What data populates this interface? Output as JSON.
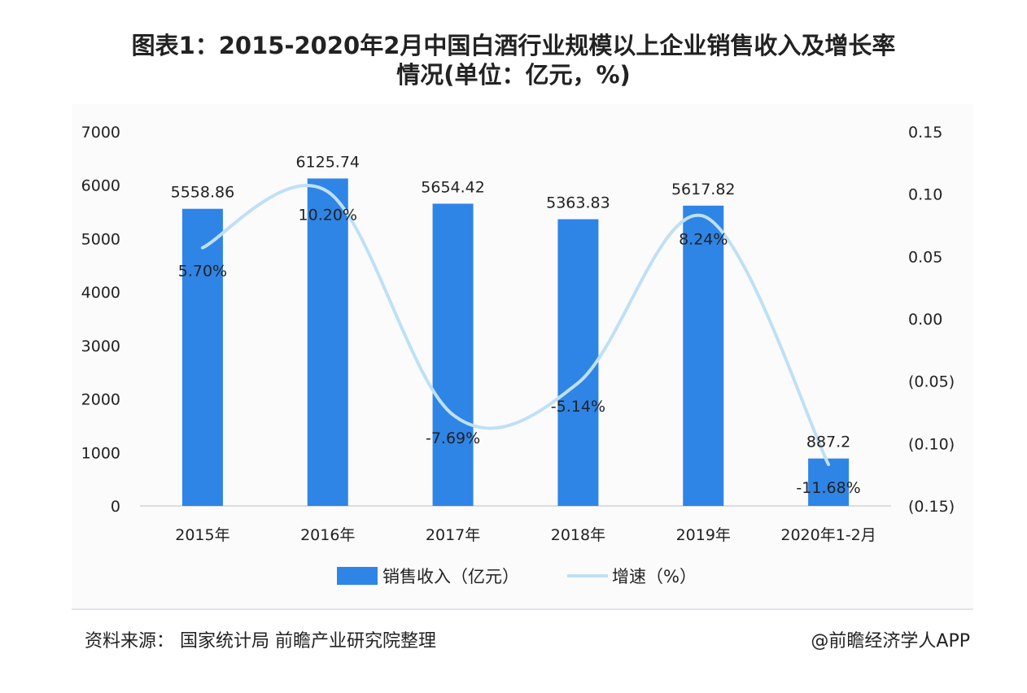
{
  "title_line1": "图表1：2015-2020年2月中国白酒行业规模以上企业销售收入及增长率",
  "title_line2": "情况(单位：亿元，%)",
  "source": "资料来源：  国家统计局  前瞻产业研究院整理",
  "credit": "@前瞻经济学人APP",
  "colors": {
    "bar": "#2f85e6",
    "line": "#bfe0f5"
  },
  "chart_data": {
    "type": "bar",
    "categories": [
      "2015年",
      "2016年",
      "2017年",
      "2018年",
      "2019年",
      "2020年1-2月"
    ],
    "series": [
      {
        "name": "销售收入（亿元）",
        "type": "bar",
        "axis": "left",
        "values": [
          5558.86,
          6125.74,
          5654.42,
          5363.83,
          5617.82,
          887.2
        ],
        "labels": [
          "5558.86",
          "6125.74",
          "5654.42",
          "5363.83",
          "5617.82",
          "887.2"
        ]
      },
      {
        "name": "增速（%）",
        "type": "line",
        "axis": "right",
        "values": [
          0.057,
          0.102,
          -0.0769,
          -0.0514,
          0.0824,
          -0.1168
        ],
        "labels": [
          "5.70%",
          "10.20%",
          "-7.69%",
          "-5.14%",
          "8.24%",
          "-11.68%"
        ]
      }
    ],
    "y_left": {
      "ylim": [
        0,
        7000
      ],
      "ticks": [
        0,
        1000,
        2000,
        3000,
        4000,
        5000,
        6000,
        7000
      ],
      "tick_labels": [
        "0",
        "1000",
        "2000",
        "3000",
        "4000",
        "5000",
        "6000",
        "7000"
      ]
    },
    "y_right": {
      "ylim": [
        -0.15,
        0.15
      ],
      "ticks": [
        -0.15,
        -0.1,
        -0.05,
        0,
        0.05,
        0.1,
        0.15
      ],
      "tick_labels": [
        "(0.15)",
        "(0.10)",
        "(0.05)",
        "0.00",
        "0.05",
        "0.10",
        "0.15"
      ]
    },
    "grid": false,
    "legend": "bottom-center"
  }
}
